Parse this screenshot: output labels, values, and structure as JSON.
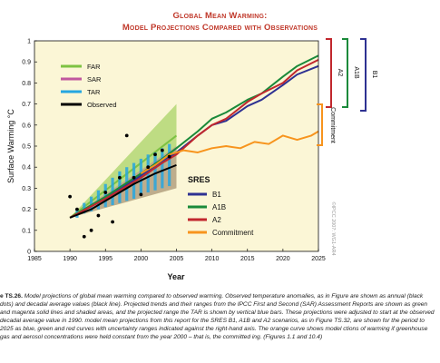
{
  "title": {
    "line1": "Global Mean Warming:",
    "line2": "Model Projections Compared with Observations"
  },
  "chart_data": {
    "type": "line",
    "ylabel": "Surface Warming °C",
    "xlabel": "Year",
    "xlim": [
      1985,
      2025
    ],
    "ylim": [
      0,
      1
    ],
    "xticks": [
      "1985",
      "1990",
      "1995",
      "2000",
      "2005",
      "2010",
      "2015",
      "2020",
      "2025"
    ],
    "yticks": [
      "0",
      "0.1",
      "0.2",
      "0.3",
      "0.4",
      "0.5",
      "0.6",
      "0.7",
      "0.8",
      "0.9",
      "1"
    ],
    "grid": false,
    "legend_ipcc": {
      "placement": "top-left",
      "entries": [
        {
          "name": "FAR",
          "color": "#7dc242"
        },
        {
          "name": "SAR",
          "color": "#c0579e"
        },
        {
          "name": "TAR",
          "color": "#26a6e0"
        },
        {
          "name": "Observed",
          "color": "#000000"
        }
      ]
    },
    "legend_sres": {
      "title": "SRES",
      "placement": "bottom-right",
      "entries": [
        {
          "name": "B1",
          "color": "#2e3192"
        },
        {
          "name": "A1B",
          "color": "#1a8a3a"
        },
        {
          "name": "A2",
          "color": "#c1272d"
        },
        {
          "name": "Commitment",
          "color": "#f7941d"
        }
      ]
    },
    "observed_points": {
      "color": "#000000",
      "x": [
        1990,
        1991,
        1992,
        1993,
        1994,
        1995,
        1996,
        1997,
        1998,
        1999,
        2000,
        2001,
        2002,
        2003,
        2004
      ],
      "y": [
        0.26,
        0.2,
        0.07,
        0.1,
        0.17,
        0.28,
        0.14,
        0.35,
        0.55,
        0.35,
        0.27,
        0.4,
        0.46,
        0.48,
        0.45
      ]
    },
    "observed_decadal": {
      "color": "#000000",
      "x": [
        1990,
        1993,
        1996,
        1999,
        2002,
        2005
      ],
      "y": [
        0.16,
        0.2,
        0.26,
        0.32,
        0.37,
        0.41
      ]
    },
    "far_range": {
      "x": [
        1990,
        2005
      ],
      "lower": [
        0.16,
        0.3
      ],
      "upper": [
        0.16,
        0.7
      ],
      "color": "#8cc63f"
    },
    "far_mean": {
      "x": [
        1990,
        2005
      ],
      "y": [
        0.16,
        0.55
      ],
      "color": "#7dc242"
    },
    "sar_range": {
      "x": [
        1990,
        2005
      ],
      "lower": [
        0.16,
        0.3
      ],
      "upper": [
        0.16,
        0.5
      ],
      "color": "#c0579e"
    },
    "tar_bars": {
      "x": [
        1991,
        1992,
        1993,
        1994,
        1995,
        1996,
        1997,
        1998,
        1999,
        2000,
        2001,
        2002,
        2003,
        2004
      ],
      "lower": [
        0.16,
        0.18,
        0.19,
        0.2,
        0.21,
        0.22,
        0.23,
        0.24,
        0.25,
        0.27,
        0.28,
        0.29,
        0.3,
        0.31
      ],
      "upper": [
        0.2,
        0.23,
        0.26,
        0.29,
        0.32,
        0.35,
        0.38,
        0.4,
        0.42,
        0.44,
        0.46,
        0.47,
        0.49,
        0.51
      ],
      "color": "#26a6e0"
    },
    "series": [
      {
        "name": "B1",
        "color": "#2e3192",
        "x": [
          1990,
          1995,
          2000,
          2003,
          2005,
          2008,
          2010,
          2012,
          2015,
          2017,
          2020,
          2022,
          2025
        ],
        "y": [
          0.16,
          0.25,
          0.36,
          0.43,
          0.47,
          0.55,
          0.6,
          0.62,
          0.69,
          0.72,
          0.79,
          0.84,
          0.88
        ]
      },
      {
        "name": "A1B",
        "color": "#1a8a3a",
        "x": [
          1990,
          1995,
          2000,
          2003,
          2005,
          2008,
          2010,
          2012,
          2015,
          2017,
          2020,
          2022,
          2025
        ],
        "y": [
          0.16,
          0.26,
          0.37,
          0.44,
          0.49,
          0.57,
          0.63,
          0.66,
          0.72,
          0.75,
          0.83,
          0.88,
          0.93
        ]
      },
      {
        "name": "A2",
        "color": "#c1272d",
        "x": [
          1990,
          1995,
          2000,
          2003,
          2005,
          2008,
          2010,
          2012,
          2015,
          2017,
          2020,
          2022,
          2025
        ],
        "y": [
          0.16,
          0.25,
          0.35,
          0.42,
          0.46,
          0.55,
          0.6,
          0.63,
          0.71,
          0.75,
          0.8,
          0.86,
          0.91
        ]
      },
      {
        "name": "Commitment",
        "color": "#f7941d",
        "x": [
          2000,
          2002,
          2004,
          2006,
          2008,
          2010,
          2012,
          2014,
          2016,
          2018,
          2020,
          2022,
          2024,
          2025
        ],
        "y": [
          0.37,
          0.41,
          0.46,
          0.48,
          0.47,
          0.49,
          0.5,
          0.49,
          0.52,
          0.51,
          0.55,
          0.53,
          0.55,
          0.57
        ]
      }
    ],
    "bracket_labels": [
      "A2",
      "A1B",
      "B1",
      "Commitment"
    ],
    "source": "©IPCC 2007: WG1-AR4"
  },
  "caption": {
    "label": "e TS.26.",
    "text": " Model projections of global mean warming compared to observed warming. Observed temperature anomalies, as in Figure are shown as annual (black dots) and decadal average values (black line). Projected trends and their ranges from the IPCC First and Second (SAR) Assessment Reports are shown as green and magenta solid lines and shaded areas, and the projected range the TAR is shown by vertical blue bars. These projections were adjusted to start at the observed decadal average value in 1990. model mean projections from this report for the SRES B1, A1B and A2 scenarios, as in Figure TS.32, are shown for the period to 2025 as blue, green and red curves with uncertainty ranges indicated against the right-hand axis. The orange curve shows model ctions of warming if greenhouse gas and aerosol concentrations were held constant from the year 2000 – that is, the committed ing. (Figures 1.1 and 10.4)"
  }
}
